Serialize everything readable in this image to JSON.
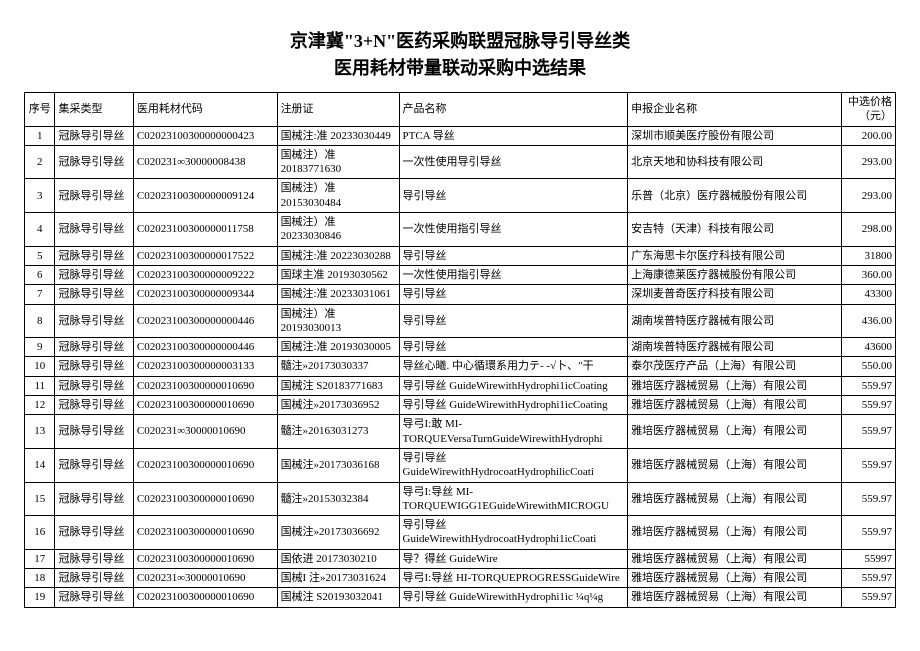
{
  "title_line1": "京津冀\"3+N\"医药采购联盟冠脉导引导丝类",
  "title_line2": "医用耗材带量联动采购中选结果",
  "columns": [
    "序号",
    "集采类型",
    "医用耗材代码",
    "注册证",
    "产品名称",
    "申报企业名称",
    "中选价格（元）"
  ],
  "rows": [
    {
      "seq": "1",
      "type": "冠脉导引导丝",
      "code": "C02023100300000000423",
      "reg": "国械注:准 20233030449",
      "name": "PTCA 导丝",
      "company": "深圳市顺美医疗股份有限公司",
      "price": "200.00"
    },
    {
      "seq": "2",
      "type": "冠脉导引导丝",
      "code": "C020231∞30000008438",
      "reg": "国械注）准 20183771630",
      "name": "一次性使用导引导丝",
      "company": "北京天地和协科技有限公司",
      "price": "293.00"
    },
    {
      "seq": "3",
      "type": "冠脉导引导丝",
      "code": "C02023100300000009124",
      "reg": "国械注）准 20153030484",
      "name": "导引导丝",
      "company": "乐普（北京）医疗器械股份有限公司",
      "price": "293.00"
    },
    {
      "seq": "4",
      "type": "冠脉导引导丝",
      "code": "C02023100300000011758",
      "reg": "国械注）准 20233030846",
      "name": "一次性使用指引导丝",
      "company": "安吉特（天津）科技有限公司",
      "price": "298.00"
    },
    {
      "seq": "5",
      "type": "冠脉导引导丝",
      "code": "C02023100300000017522",
      "reg": "国械注:准 20223030288",
      "name": "导引导丝",
      "company": "广东海思卡尔医疗科技有限公司",
      "price": "31800"
    },
    {
      "seq": "6",
      "type": "冠脉导引导丝",
      "code": "C02023100300000009222",
      "reg": "国球主准 20193030562",
      "name": "一次性使用指引导丝",
      "company": "上海康德莱医疗器械股份有限公司",
      "price": "360.00"
    },
    {
      "seq": "7",
      "type": "冠脉导引导丝",
      "code": "C02023100300000009344",
      "reg": "国械注:准 20233031061",
      "name": "导引导丝",
      "company": "深圳麦普奇医疗科技有限公司",
      "price": "43300"
    },
    {
      "seq": "8",
      "type": "冠脉导引导丝",
      "code": "C02023100300000000446",
      "reg": "国械注）准 20193030013",
      "name": "导引导丝",
      "company": "湖南埃普特医疗器械有限公司",
      "price": "436.00"
    },
    {
      "seq": "9",
      "type": "冠脉导引导丝",
      "code": "C02023100300000000446",
      "reg": "国械注:准 20193030005",
      "name": "导引导丝",
      "company": "湖南埃普特医疗器械有限公司",
      "price": "43600"
    },
    {
      "seq": "10",
      "type": "冠脉导引导丝",
      "code": "C02023100300000003133",
      "reg": "髓注»20173030337",
      "name": "导丝心曦. 中心循環系用力テ- -√卜、\"干",
      "company": "泰尔茂医疗产品（上海）有限公司",
      "price": "550.00"
    },
    {
      "seq": "11",
      "type": "冠脉导引导丝",
      "code": "C02023100300000010690",
      "reg": "国械注 S20183771683",
      "name": "导引导丝 GuideWirewithHydrophi1icCoating",
      "company": "雅培医疗器械贸易（上海）有限公司",
      "price": "559.97"
    },
    {
      "seq": "12",
      "type": "冠脉导引导丝",
      "code": "C02023100300000010690",
      "reg": "国械注»20173036952",
      "name": "导引导丝 GuideWirewithHydrophi1icCoating",
      "company": "雅培医疗器械贸易（上海）有限公司",
      "price": "559.97"
    },
    {
      "seq": "13",
      "type": "冠脉导引导丝",
      "code": "C020231∞30000010690",
      "reg": "髓注»20163031273",
      "name": "导弓I:敢 MI-TORQUEVersaTurnGuideWirewithHydrophi",
      "company": "雅培医疗器械贸易（上海）有限公司",
      "price": "559.97"
    },
    {
      "seq": "14",
      "type": "冠脉导引导丝",
      "code": "C02023100300000010690",
      "reg": "国械注»20173036168",
      "name": "导引导丝 GuideWirewithHydrocoatHydrophilicCoati",
      "company": "雅培医疗器械贸易（上海）有限公司",
      "price": "559.97"
    },
    {
      "seq": "15",
      "type": "冠脉导引导丝",
      "code": "C02023100300000010690",
      "reg": "髓注»20153032384",
      "name": "导弓I:导丝 MI-TORQUEWIGG1EGuideWirewithMICROGU",
      "company": "雅培医疗器械贸易（上海）有限公司",
      "price": "559.97"
    },
    {
      "seq": "16",
      "type": "冠脉导引导丝",
      "code": "C02023100300000010690",
      "reg": "国械注»20173036692",
      "name": "导引导丝 GuideWirewithHydrocoatHydrophi1icCoati",
      "company": "雅培医疗器械贸易（上海）有限公司",
      "price": "559.97"
    },
    {
      "seq": "17",
      "type": "冠脉导引导丝",
      "code": "C02023100300000010690",
      "reg": "国依进 20173030210",
      "name": "导？得丝 GuideWire",
      "company": "雅培医疗器械贸易（上海）有限公司",
      "price": "55997"
    },
    {
      "seq": "18",
      "type": "冠脉导引导丝",
      "code": "C020231∞30000010690",
      "reg": "国械I 注»20173031624",
      "name": "导弓I:导丝 HI-TORQUEPROGRESSGuideWire",
      "company": "雅培医疗器械贸易（上海）有限公司",
      "price": "559.97"
    },
    {
      "seq": "19",
      "type": "冠脉导引导丝",
      "code": "C02023100300000010690",
      "reg": "国械注 S20193032041",
      "name": "导引导丝 GuideWirewithHydrophi1ic ¼q¼g",
      "company": "雅培医疗器械贸易（上海）有限公司",
      "price": "559.97"
    }
  ]
}
